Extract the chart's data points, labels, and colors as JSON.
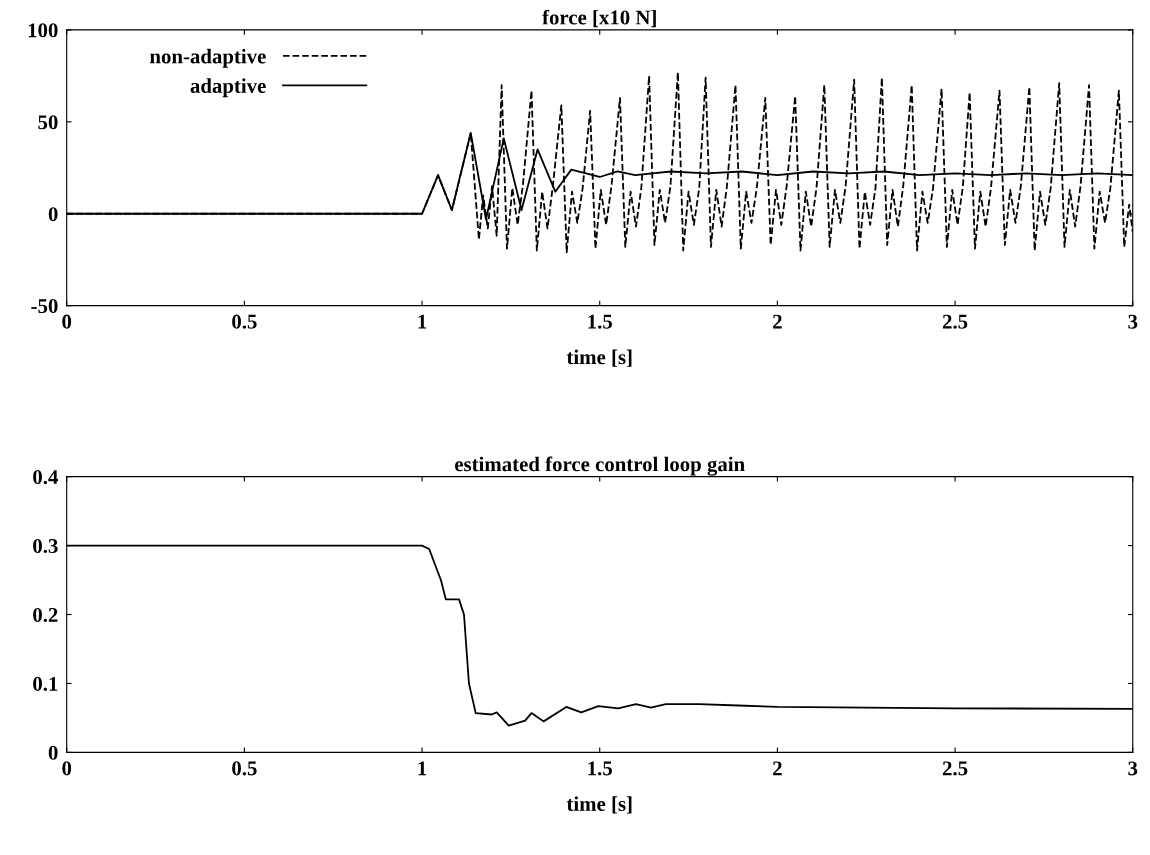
{
  "chart_data": [
    {
      "type": "line",
      "title": "force [x10 N]",
      "xlabel": "time [s]",
      "xlim": [
        0,
        3
      ],
      "xticks": [
        0,
        0.5,
        1,
        1.5,
        2,
        2.5,
        3
      ],
      "ylim": [
        -50,
        100
      ],
      "yticks": [
        -50,
        0,
        50,
        100
      ],
      "grid": false,
      "legend": "top left",
      "series": [
        {
          "name": "non-adaptive",
          "color": "#000000",
          "line_style": "dashed",
          "x": [
            0,
            1.0,
            1.045,
            1.084,
            1.137,
            1.16,
            1.172,
            1.185,
            1.197,
            1.21,
            1.224,
            1.239,
            1.254,
            1.269,
            1.284,
            1.308,
            1.323,
            1.338,
            1.353,
            1.368,
            1.392,
            1.407,
            1.422,
            1.437,
            1.452,
            1.473,
            1.488,
            1.503,
            1.518,
            1.533,
            1.557,
            1.572,
            1.587,
            1.602,
            1.617,
            1.639,
            1.654,
            1.669,
            1.684,
            1.699,
            1.72,
            1.735,
            1.75,
            1.765,
            1.78,
            1.798,
            1.813,
            1.828,
            1.843,
            1.858,
            1.882,
            1.897,
            1.912,
            1.927,
            1.942,
            1.966,
            1.981,
            1.996,
            2.011,
            2.026,
            2.05,
            2.065,
            2.08,
            2.095,
            2.11,
            2.132,
            2.147,
            2.162,
            2.177,
            2.192,
            2.216,
            2.231,
            2.246,
            2.261,
            2.276,
            2.294,
            2.309,
            2.324,
            2.339,
            2.354,
            2.378,
            2.393,
            2.408,
            2.423,
            2.438,
            2.462,
            2.477,
            2.492,
            2.507,
            2.522,
            2.541,
            2.556,
            2.571,
            2.586,
            2.601,
            2.625,
            2.64,
            2.655,
            2.67,
            2.685,
            2.709,
            2.724,
            2.739,
            2.754,
            2.769,
            2.793,
            2.808,
            2.823,
            2.838,
            2.853,
            2.877,
            2.892,
            2.907,
            2.922,
            2.937,
            2.961,
            2.976,
            2.99,
            3.0
          ],
          "values": [
            0,
            0,
            21,
            2,
            44,
            -14,
            10,
            -8,
            15,
            -12,
            70,
            -19,
            14,
            -6,
            16,
            67,
            -20,
            12,
            -8,
            15,
            59,
            -21,
            12,
            -5,
            14,
            56,
            -19,
            13,
            -6,
            15,
            63,
            -18,
            12,
            -7,
            14,
            75,
            -17,
            13,
            -5,
            15,
            77,
            -20,
            12,
            -6,
            14,
            74,
            -18,
            13,
            -7,
            15,
            70,
            -19,
            12,
            -5,
            14,
            63,
            -17,
            13,
            -6,
            15,
            64,
            -20,
            12,
            -7,
            14,
            70,
            -18,
            13,
            -5,
            15,
            73,
            -19,
            12,
            -6,
            14,
            74,
            -17,
            13,
            -7,
            15,
            70,
            -20,
            12,
            -5,
            14,
            68,
            -18,
            13,
            -6,
            15,
            66,
            -19,
            12,
            -7,
            14,
            67,
            -17,
            13,
            -5,
            15,
            69,
            -20,
            12,
            -6,
            14,
            71,
            -18,
            13,
            -7,
            15,
            70,
            -19,
            12,
            -5,
            14,
            67,
            -18,
            5,
            -10
          ]
        },
        {
          "name": "adaptive",
          "color": "#000000",
          "line_style": "solid",
          "x": [
            0,
            1.0,
            1.045,
            1.084,
            1.137,
            1.18,
            1.23,
            1.28,
            1.325,
            1.375,
            1.42,
            1.5,
            1.55,
            1.6,
            1.7,
            1.8,
            1.9,
            2.0,
            2.1,
            2.2,
            2.3,
            2.4,
            2.5,
            2.6,
            2.7,
            2.8,
            2.9,
            3.0
          ],
          "values": [
            0,
            0,
            21,
            2,
            44,
            -3,
            41,
            2,
            35,
            12,
            24,
            20,
            23,
            21,
            23,
            22,
            23,
            21,
            23,
            22,
            23,
            21,
            22,
            21,
            22,
            21,
            22,
            21
          ]
        }
      ]
    },
    {
      "type": "line",
      "title": "estimated force control loop gain",
      "xlabel": "time [s]",
      "xlim": [
        0,
        3
      ],
      "xticks": [
        0,
        0.5,
        1,
        1.5,
        2,
        2.5,
        3
      ],
      "ylim": [
        0,
        0.4
      ],
      "yticks": [
        0,
        0.1,
        0.2,
        0.3,
        0.4
      ],
      "grid": false,
      "legend": false,
      "series": [
        {
          "color": "#000000",
          "line_style": "solid",
          "x": [
            0,
            1.0,
            1.02,
            1.053,
            1.067,
            1.104,
            1.118,
            1.132,
            1.151,
            1.196,
            1.21,
            1.244,
            1.29,
            1.308,
            1.342,
            1.406,
            1.448,
            1.496,
            1.552,
            1.602,
            1.644,
            1.686,
            1.78,
            1.89,
            2.0,
            2.5,
            3.0
          ],
          "values": [
            0.3,
            0.3,
            0.295,
            0.25,
            0.222,
            0.222,
            0.2,
            0.1,
            0.057,
            0.055,
            0.058,
            0.039,
            0.046,
            0.057,
            0.045,
            0.066,
            0.058,
            0.067,
            0.064,
            0.07,
            0.065,
            0.07,
            0.07,
            0.068,
            0.066,
            0.064,
            0.063
          ]
        }
      ]
    }
  ]
}
